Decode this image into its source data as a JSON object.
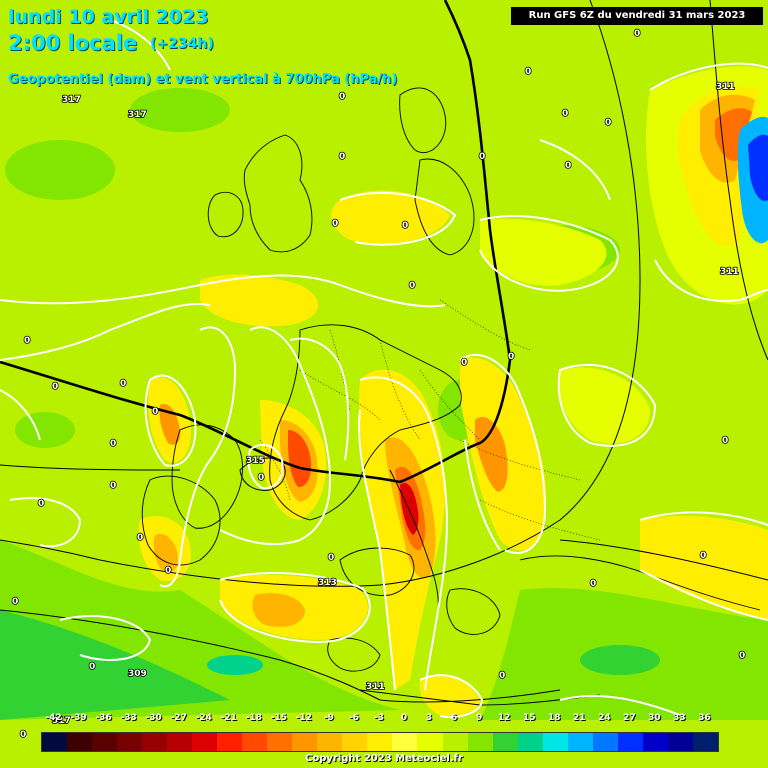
{
  "header": {
    "date": "lundi 10 avril 2023",
    "time": "2:00 locale",
    "step": "(+234h)",
    "field": "Geopotentiel (dam) et vent vertical à 700hPa (hPa/h)",
    "run": "Run GFS 6Z du vendredi 31 mars 2023"
  },
  "legend": {
    "ticks": [
      "-42",
      "-39",
      "-36",
      "-33",
      "-30",
      "-27",
      "-24",
      "-21",
      "-18",
      "-15",
      "-12",
      "-9",
      "-6",
      "-3",
      "0",
      "3",
      "6",
      "9",
      "12",
      "15",
      "18",
      "21",
      "24",
      "27",
      "30",
      "33",
      "36"
    ],
    "colors": [
      "#000a3c",
      "#3c0000",
      "#5a0000",
      "#780000",
      "#960000",
      "#b40000",
      "#dc0000",
      "#ff2000",
      "#ff4a00",
      "#ff7000",
      "#ff9600",
      "#ffb400",
      "#ffd200",
      "#ffee00",
      "#ffff3c",
      "#e6ff00",
      "#b8f000",
      "#82e600",
      "#32d232",
      "#00d28c",
      "#00e6e6",
      "#00b4ff",
      "#0078ff",
      "#0030ff",
      "#0000c8",
      "#000096",
      "#001e6e"
    ]
  },
  "map_labels": {
    "geopotential": [
      "317",
      "317",
      "311",
      "311",
      "315",
      "313",
      "309",
      "311",
      "317"
    ],
    "vertical_wind": [
      "0",
      "0",
      "0",
      "0",
      "0",
      "0",
      "0",
      "0",
      "0",
      "0",
      "0",
      "0",
      "0",
      "0",
      "0",
      "0",
      "0",
      "0",
      "0",
      "0",
      "0",
      "0",
      "0",
      "0",
      "0",
      "0",
      "0",
      "0",
      "0",
      "0",
      "0",
      "0"
    ]
  },
  "copyright": "Copyright 2023 Meteociel.fr"
}
